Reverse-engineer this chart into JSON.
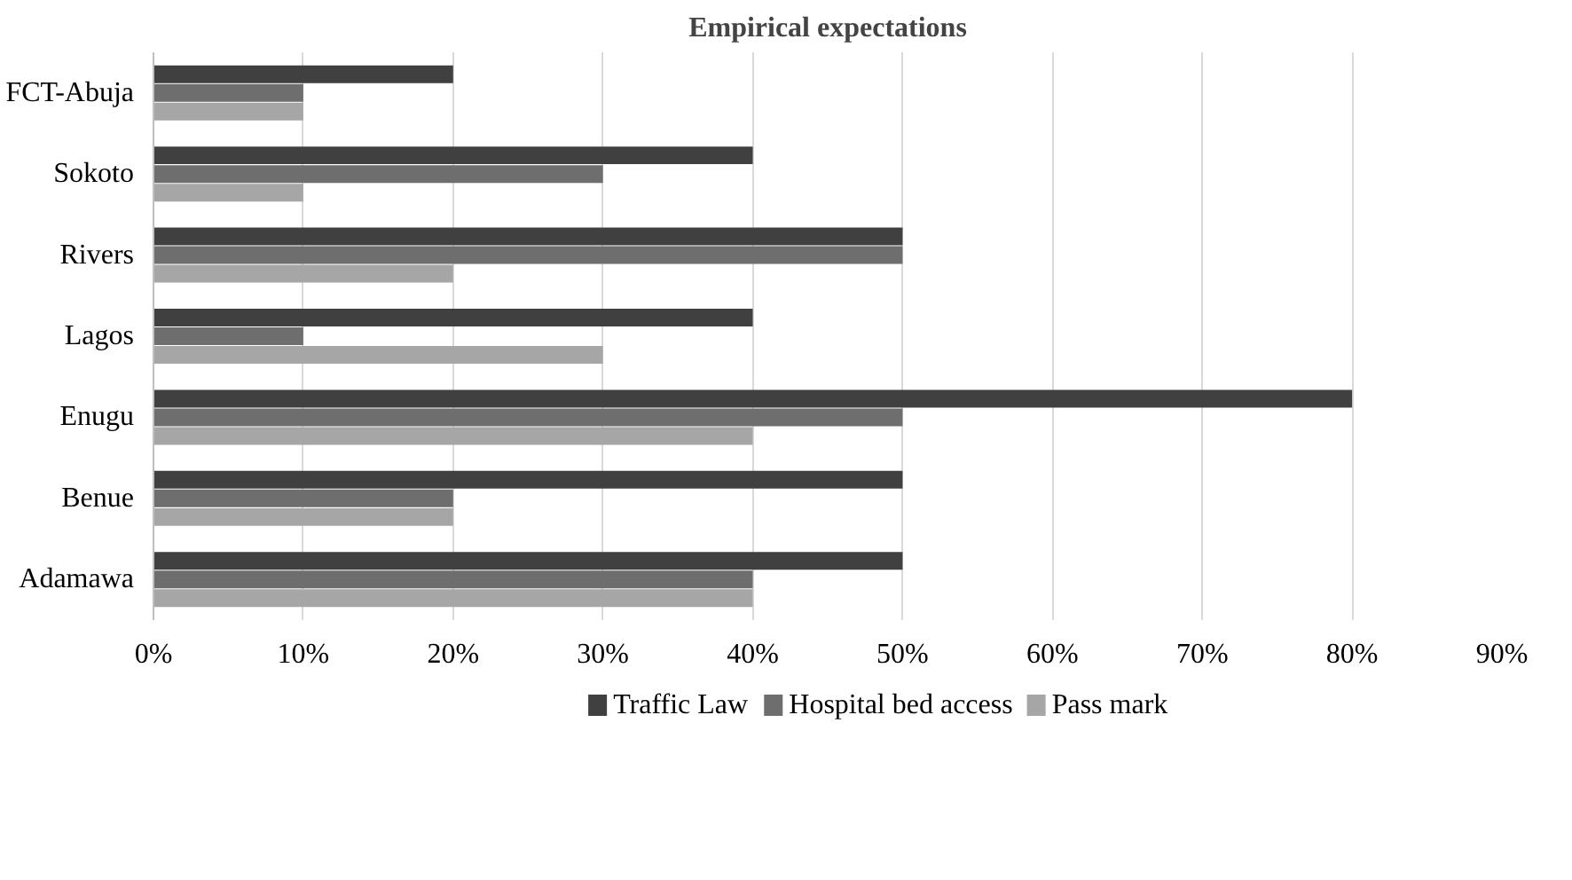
{
  "chart_data": {
    "type": "bar",
    "orientation": "horizontal",
    "title": "Empirical expectations",
    "categories": [
      "FCT-Abuja",
      "Sokoto",
      "Rivers",
      "Lagos",
      "Enugu",
      "Benue",
      "Adamawa"
    ],
    "series": [
      {
        "name": "Traffic Law",
        "color": "#404040",
        "values": [
          20,
          40,
          50,
          40,
          80,
          50,
          50
        ]
      },
      {
        "name": "Hospital bed access",
        "color": "#6e6e6e",
        "values": [
          10,
          30,
          50,
          10,
          50,
          20,
          40
        ]
      },
      {
        "name": "Pass mark",
        "color": "#a6a6a6",
        "values": [
          10,
          10,
          20,
          30,
          40,
          20,
          40
        ]
      }
    ],
    "xlim": [
      0,
      90
    ],
    "xticks": [
      {
        "value": 0,
        "label": "0%"
      },
      {
        "value": 10,
        "label": "10%"
      },
      {
        "value": 20,
        "label": "20%"
      },
      {
        "value": 30,
        "label": "30%"
      },
      {
        "value": 40,
        "label": "40%"
      },
      {
        "value": 50,
        "label": "50%"
      },
      {
        "value": 60,
        "label": "60%"
      },
      {
        "value": 70,
        "label": "70%"
      },
      {
        "value": 80,
        "label": "80%"
      },
      {
        "value": 90,
        "label": "90%"
      }
    ],
    "grid": "x",
    "legend": "bottom"
  }
}
